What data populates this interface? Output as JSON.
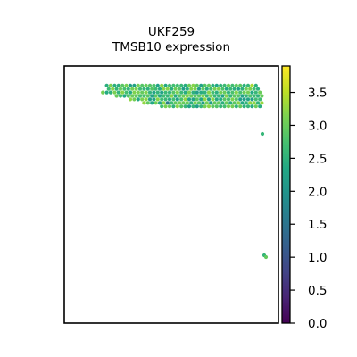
{
  "chart_data": {
    "type": "heatmap",
    "title": "UKF259",
    "subtitle": "TMSB10 expression",
    "xlabel": "",
    "ylabel": "",
    "colormap": "viridis",
    "colorbar": {
      "min": 0.0,
      "max": 3.9,
      "ticks": [
        0.0,
        0.5,
        1.0,
        1.5,
        2.0,
        2.5,
        3.0,
        3.5
      ],
      "tick_labels": [
        "0.0",
        "0.5",
        "1.0",
        "1.5",
        "2.0",
        "2.5",
        "3.0",
        "3.5"
      ]
    },
    "value_summary": {
      "typical_range": [
        2.2,
        3.4
      ],
      "high_regions": [
        "left-center",
        "bottom-left",
        "bottom-right"
      ],
      "min_observed": 1.1
    },
    "grid": false
  }
}
